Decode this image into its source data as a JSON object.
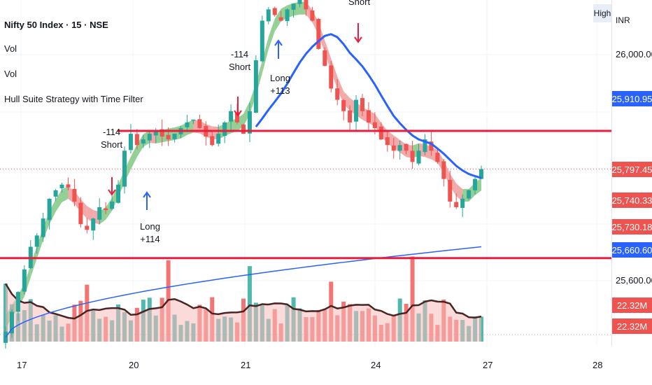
{
  "header": {
    "title": "Nifty 50 Index · 15 · NSE",
    "indicators": [
      "Vol",
      "Vol",
      "Hull Suite Strategy with Time Filter"
    ],
    "high_badge": "High",
    "currency": "INR"
  },
  "colors": {
    "up": "#26a69a",
    "down": "#ef5350",
    "hull_up": "#81c784",
    "hull_down": "#ef9a9a",
    "ma": "#2962ff",
    "level": "#e91e3c",
    "vol_ma": "#4a2323",
    "signal_long": "#2962ff",
    "signal_short": "#e91e3c"
  },
  "chart_data": {
    "type": "candlestick",
    "symbol": "Nifty 50 Index",
    "interval": "15",
    "exchange": "NSE",
    "currency": "INR",
    "y_range": [
      25560,
      26100
    ],
    "y_ticks": [
      "26,000.00",
      "25,600.00"
    ],
    "x_ticks": [
      "17",
      "20",
      "21",
      "24",
      "27",
      "28"
    ],
    "price_labels": [
      {
        "text": "25,910.95",
        "value": 25910.95,
        "color": "#2962ff"
      },
      {
        "text": "25,797.45",
        "value": 25797.45,
        "color": "#ef5350"
      },
      {
        "text": "25,740.33",
        "value": 25740.33,
        "color": "#ef5350"
      },
      {
        "text": "25,730.18",
        "value": 25730.18,
        "color": "#ef5350"
      },
      {
        "text": "25,660.60",
        "value": 25660.6,
        "color": "#2962ff"
      }
    ],
    "volume_labels": [
      "22.32M",
      "22.32M"
    ],
    "horizontal_levels": [
      25865,
      25640
    ],
    "signals": [
      {
        "type": "Short",
        "pnl": "-114",
        "day": "17",
        "layout": "pnl-above"
      },
      {
        "type": "Long",
        "pnl": "+114",
        "day": "20",
        "layout": "pnl-below"
      },
      {
        "type": "Short",
        "pnl": "-114",
        "day": "20",
        "layout": "pnl-above"
      },
      {
        "type": "Long",
        "pnl": "+113",
        "day": "21",
        "layout": "pnl-below"
      },
      {
        "type": "Short",
        "pnl": "",
        "day": "21",
        "layout": "pnl-above"
      }
    ],
    "close_series": [
      25510,
      25545,
      25580,
      25620,
      25660,
      25680,
      25710,
      25745,
      25760,
      25770,
      25765,
      25740,
      25700,
      25690,
      25710,
      25730,
      25725,
      25740,
      25770,
      25830,
      25860,
      25840,
      25850,
      25860,
      25865,
      25855,
      25850,
      25860,
      25870,
      25880,
      25885,
      25870,
      25855,
      25840,
      25860,
      25880,
      25900,
      25880,
      25860,
      25900,
      25990,
      26060,
      26080,
      26070,
      26060,
      26080,
      26090,
      26100,
      26080,
      26060,
      26010,
      25980,
      25940,
      25920,
      25900,
      25880,
      25920,
      25900,
      25880,
      25870,
      25850,
      25840,
      25830,
      25840,
      25830,
      25810,
      25830,
      25850,
      25830,
      25810,
      25780,
      25740,
      25730,
      25745,
      25760,
      25780,
      25797.45
    ],
    "volume_scale": "M"
  }
}
